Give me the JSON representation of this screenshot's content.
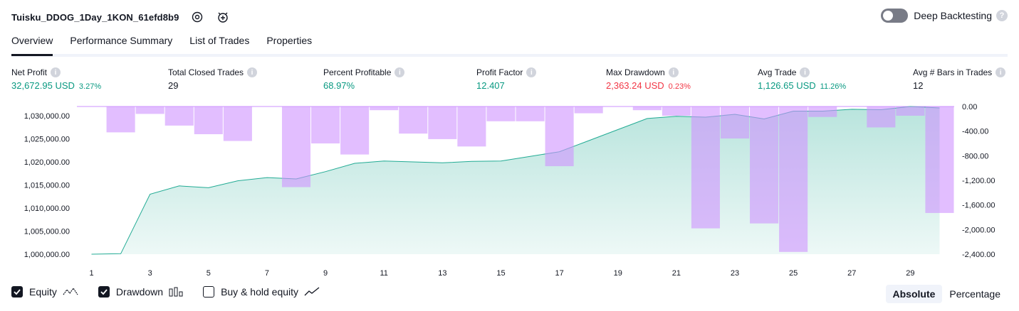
{
  "header": {
    "title": "Tuisku_DDOG_1Day_1KON_61efd8b9",
    "deep_backtesting_label": "Deep Backtesting"
  },
  "tabs": [
    {
      "label": "Overview",
      "active": true
    },
    {
      "label": "Performance Summary",
      "active": false
    },
    {
      "label": "List of Trades",
      "active": false
    },
    {
      "label": "Properties",
      "active": false
    }
  ],
  "stats": {
    "net_profit": {
      "label": "Net Profit",
      "value": "32,672.95 USD",
      "pct": "3.27%"
    },
    "total_closed_trades": {
      "label": "Total Closed Trades",
      "value": "29"
    },
    "percent_profitable": {
      "label": "Percent Profitable",
      "value": "68.97%"
    },
    "profit_factor": {
      "label": "Profit Factor",
      "value": "12.407"
    },
    "max_drawdown": {
      "label": "Max Drawdown",
      "value": "2,363.24 USD",
      "pct": "0.23%"
    },
    "avg_trade": {
      "label": "Avg Trade",
      "value": "1,126.65 USD",
      "pct": "11.26%"
    },
    "avg_bars": {
      "label": "Avg # Bars in Trades",
      "value": "12"
    }
  },
  "colors": {
    "positive": "#089981",
    "negative": "#f23645",
    "equity_line": "#22ab94",
    "drawdown_bar": "#ce93ff"
  },
  "legend": {
    "equity": "Equity",
    "drawdown": "Drawdown",
    "buy_hold": "Buy & hold equity"
  },
  "modes": {
    "absolute": "Absolute",
    "percentage": "Percentage"
  },
  "chart_data": {
    "type": "area",
    "x": [
      1,
      2,
      3,
      4,
      5,
      6,
      7,
      8,
      9,
      10,
      11,
      12,
      13,
      14,
      15,
      16,
      17,
      18,
      19,
      20,
      21,
      22,
      23,
      24,
      25,
      26,
      27,
      28,
      29,
      30
    ],
    "x_tick_labels": [
      "1",
      "3",
      "5",
      "7",
      "9",
      "11",
      "13",
      "15",
      "17",
      "19",
      "21",
      "23",
      "25",
      "27",
      "29"
    ],
    "left_axis": {
      "ylim": [
        1000000,
        1032000
      ],
      "tick_labels": [
        "1,030,000.00",
        "1,025,000.00",
        "1,020,000.00",
        "1,015,000.00",
        "1,010,000.00",
        "1,005,000.00",
        "1,000,000.00"
      ]
    },
    "right_axis": {
      "ylim": [
        -2400,
        0
      ],
      "tick_labels": [
        "0.00",
        "-400.00",
        "-800.00",
        "-1,200.00",
        "-1,600.00",
        "-2,000.00",
        "-2,400.00"
      ]
    },
    "series": [
      {
        "name": "Equity",
        "axis": "left",
        "values": [
          1000000,
          1000100,
          1013000,
          1014800,
          1014400,
          1015900,
          1016600,
          1016300,
          1017900,
          1019700,
          1020200,
          1020000,
          1019800,
          1020100,
          1020200,
          1021200,
          1022200,
          1024600,
          1027000,
          1029400,
          1029900,
          1029700,
          1030300,
          1029300,
          1031000,
          1031000,
          1031400,
          1031300,
          1032000,
          1031700
        ]
      },
      {
        "name": "Drawdown",
        "axis": "right",
        "values": [
          0,
          -420,
          -120,
          -310,
          -450,
          -560,
          0,
          -1310,
          -600,
          -780,
          -60,
          -440,
          -530,
          -650,
          -240,
          -240,
          -970,
          -110,
          0,
          -60,
          -150,
          -1980,
          -520,
          -1900,
          -2363,
          -170,
          0,
          -340,
          -150,
          -1730
        ]
      }
    ]
  }
}
